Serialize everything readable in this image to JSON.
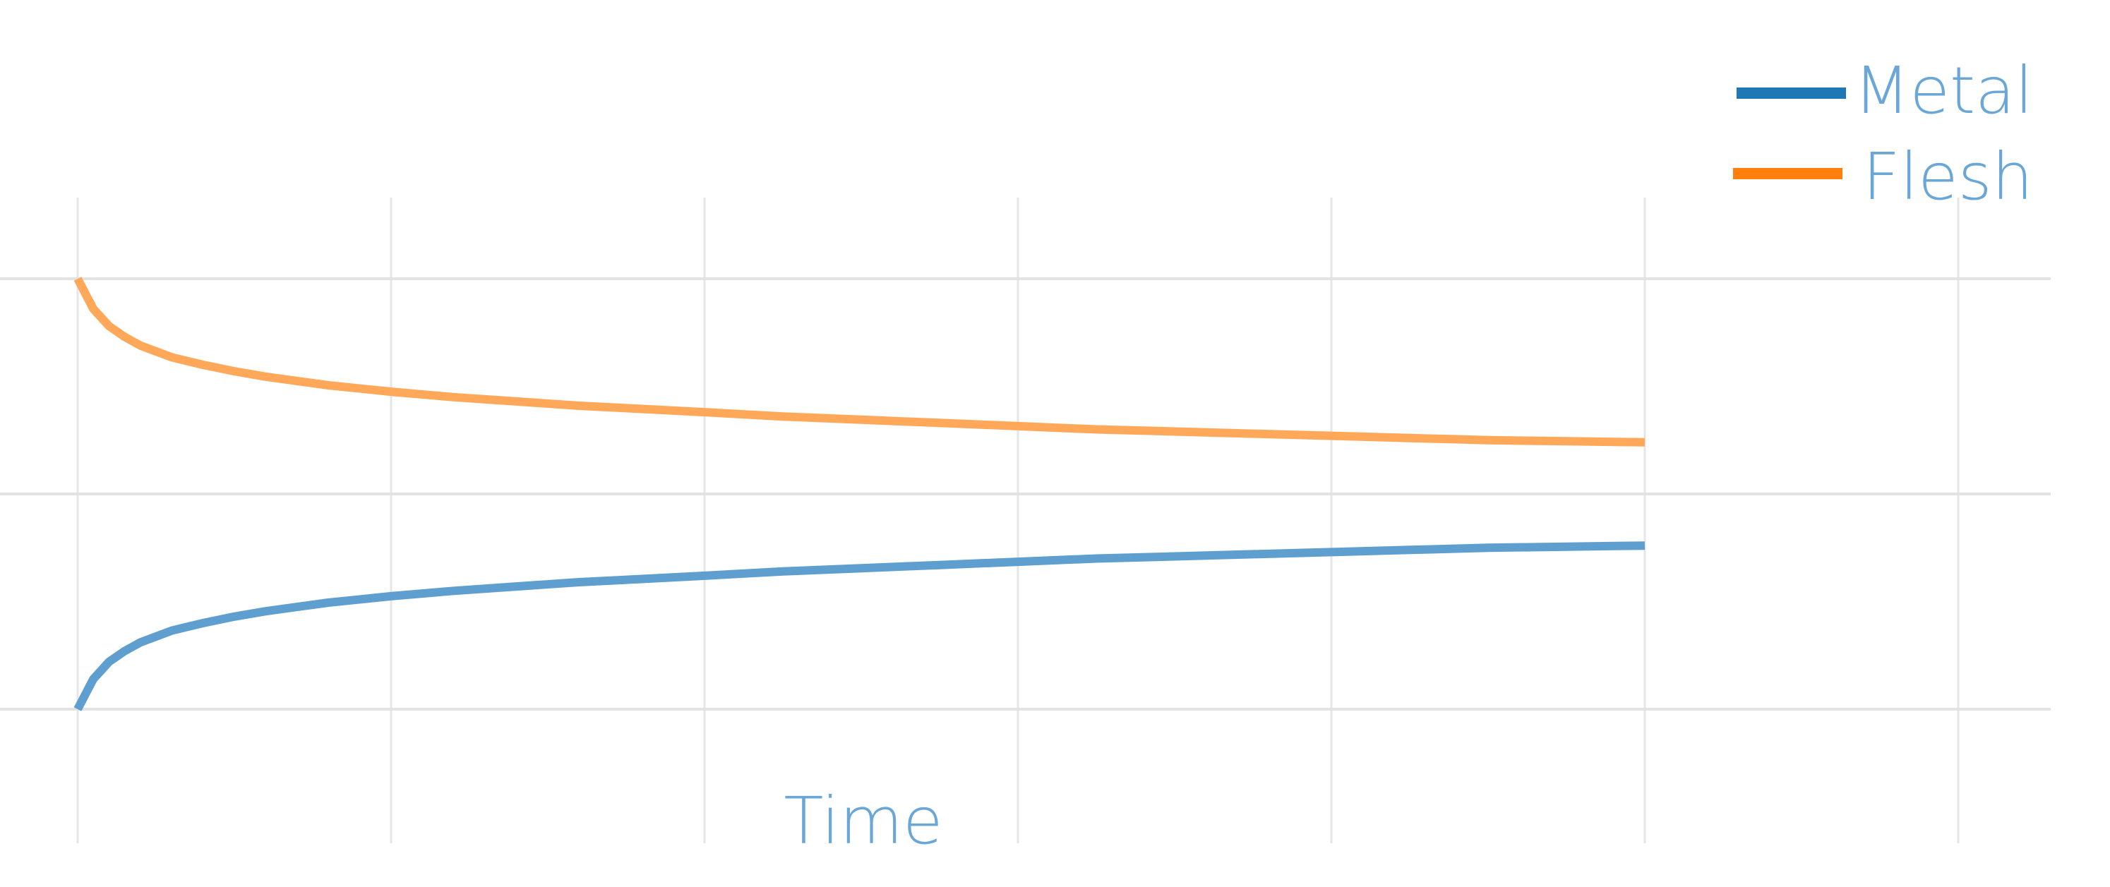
{
  "chart_data": {
    "type": "line",
    "title": "",
    "xlabel": "Time",
    "ylabel": "",
    "grid": true,
    "legend_position": "top-right",
    "xlim": [
      -0.05,
      6.5
    ],
    "ylim": [
      -1.2,
      1.2
    ],
    "series": [
      {
        "name": "Metal",
        "color": "#1f77b4",
        "x": [
          0,
          0.05,
          0.1,
          0.15,
          0.2,
          0.3,
          0.4,
          0.5,
          0.6,
          0.7,
          0.8,
          1.0,
          1.2,
          1.4,
          1.6,
          1.8,
          2.0,
          2.25,
          2.5,
          2.75,
          3.0,
          3.25,
          3.5,
          3.75,
          4.0,
          4.25,
          4.5,
          4.75,
          5.0
        ],
        "y": [
          -1.0,
          -0.86,
          -0.78,
          -0.73,
          -0.69,
          -0.635,
          -0.6,
          -0.57,
          -0.545,
          -0.525,
          -0.505,
          -0.475,
          -0.45,
          -0.43,
          -0.41,
          -0.395,
          -0.38,
          -0.36,
          -0.345,
          -0.33,
          -0.315,
          -0.3,
          -0.29,
          -0.28,
          -0.27,
          -0.26,
          -0.25,
          -0.245,
          -0.24
        ]
      },
      {
        "name": "Flesh",
        "color": "#ff7f0e",
        "x": [
          0,
          0.05,
          0.1,
          0.15,
          0.2,
          0.3,
          0.4,
          0.5,
          0.6,
          0.7,
          0.8,
          1.0,
          1.2,
          1.4,
          1.6,
          1.8,
          2.0,
          2.25,
          2.5,
          2.75,
          3.0,
          3.25,
          3.5,
          3.75,
          4.0,
          4.25,
          4.5,
          4.75,
          5.0
        ],
        "y": [
          1.0,
          0.86,
          0.78,
          0.73,
          0.69,
          0.635,
          0.6,
          0.57,
          0.545,
          0.525,
          0.505,
          0.475,
          0.45,
          0.43,
          0.41,
          0.395,
          0.38,
          0.36,
          0.345,
          0.33,
          0.315,
          0.3,
          0.29,
          0.28,
          0.27,
          0.26,
          0.25,
          0.245,
          0.24
        ]
      }
    ],
    "x_gridlines": [
      0,
      1,
      2,
      3,
      4,
      5,
      6
    ],
    "y_gridlines": [
      -1,
      0,
      1
    ]
  }
}
